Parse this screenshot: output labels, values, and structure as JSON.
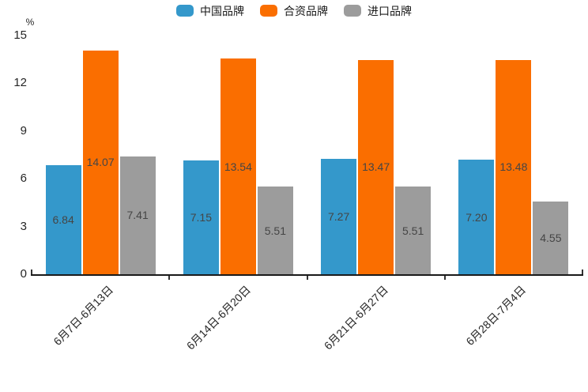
{
  "chart_data": {
    "type": "bar",
    "title": "",
    "unit_label": "%",
    "categories": [
      "6月7日-6月13日",
      "6月14日-6月20日",
      "6月21日-6月27日",
      "6月28日-7月4日"
    ],
    "series": [
      {
        "name": "中国品牌",
        "color": "#3498CB",
        "values": [
          6.84,
          7.15,
          7.27,
          7.2
        ]
      },
      {
        "name": "合资品牌",
        "color": "#FA6E00",
        "values": [
          14.07,
          13.54,
          13.47,
          13.48
        ]
      },
      {
        "name": "进口品牌",
        "color": "#9C9C9C",
        "values": [
          7.41,
          5.51,
          5.51,
          4.55
        ]
      }
    ],
    "ylim": [
      0,
      15
    ],
    "yticks": [
      0,
      3,
      6,
      9,
      12,
      15
    ],
    "grid": false,
    "legend_position": "top-center",
    "value_labels": "inside-middle",
    "value_label_decimals": 2,
    "axis_color": "#1a1a1a",
    "text_color": "#262626",
    "value_label_color": "#454545"
  }
}
